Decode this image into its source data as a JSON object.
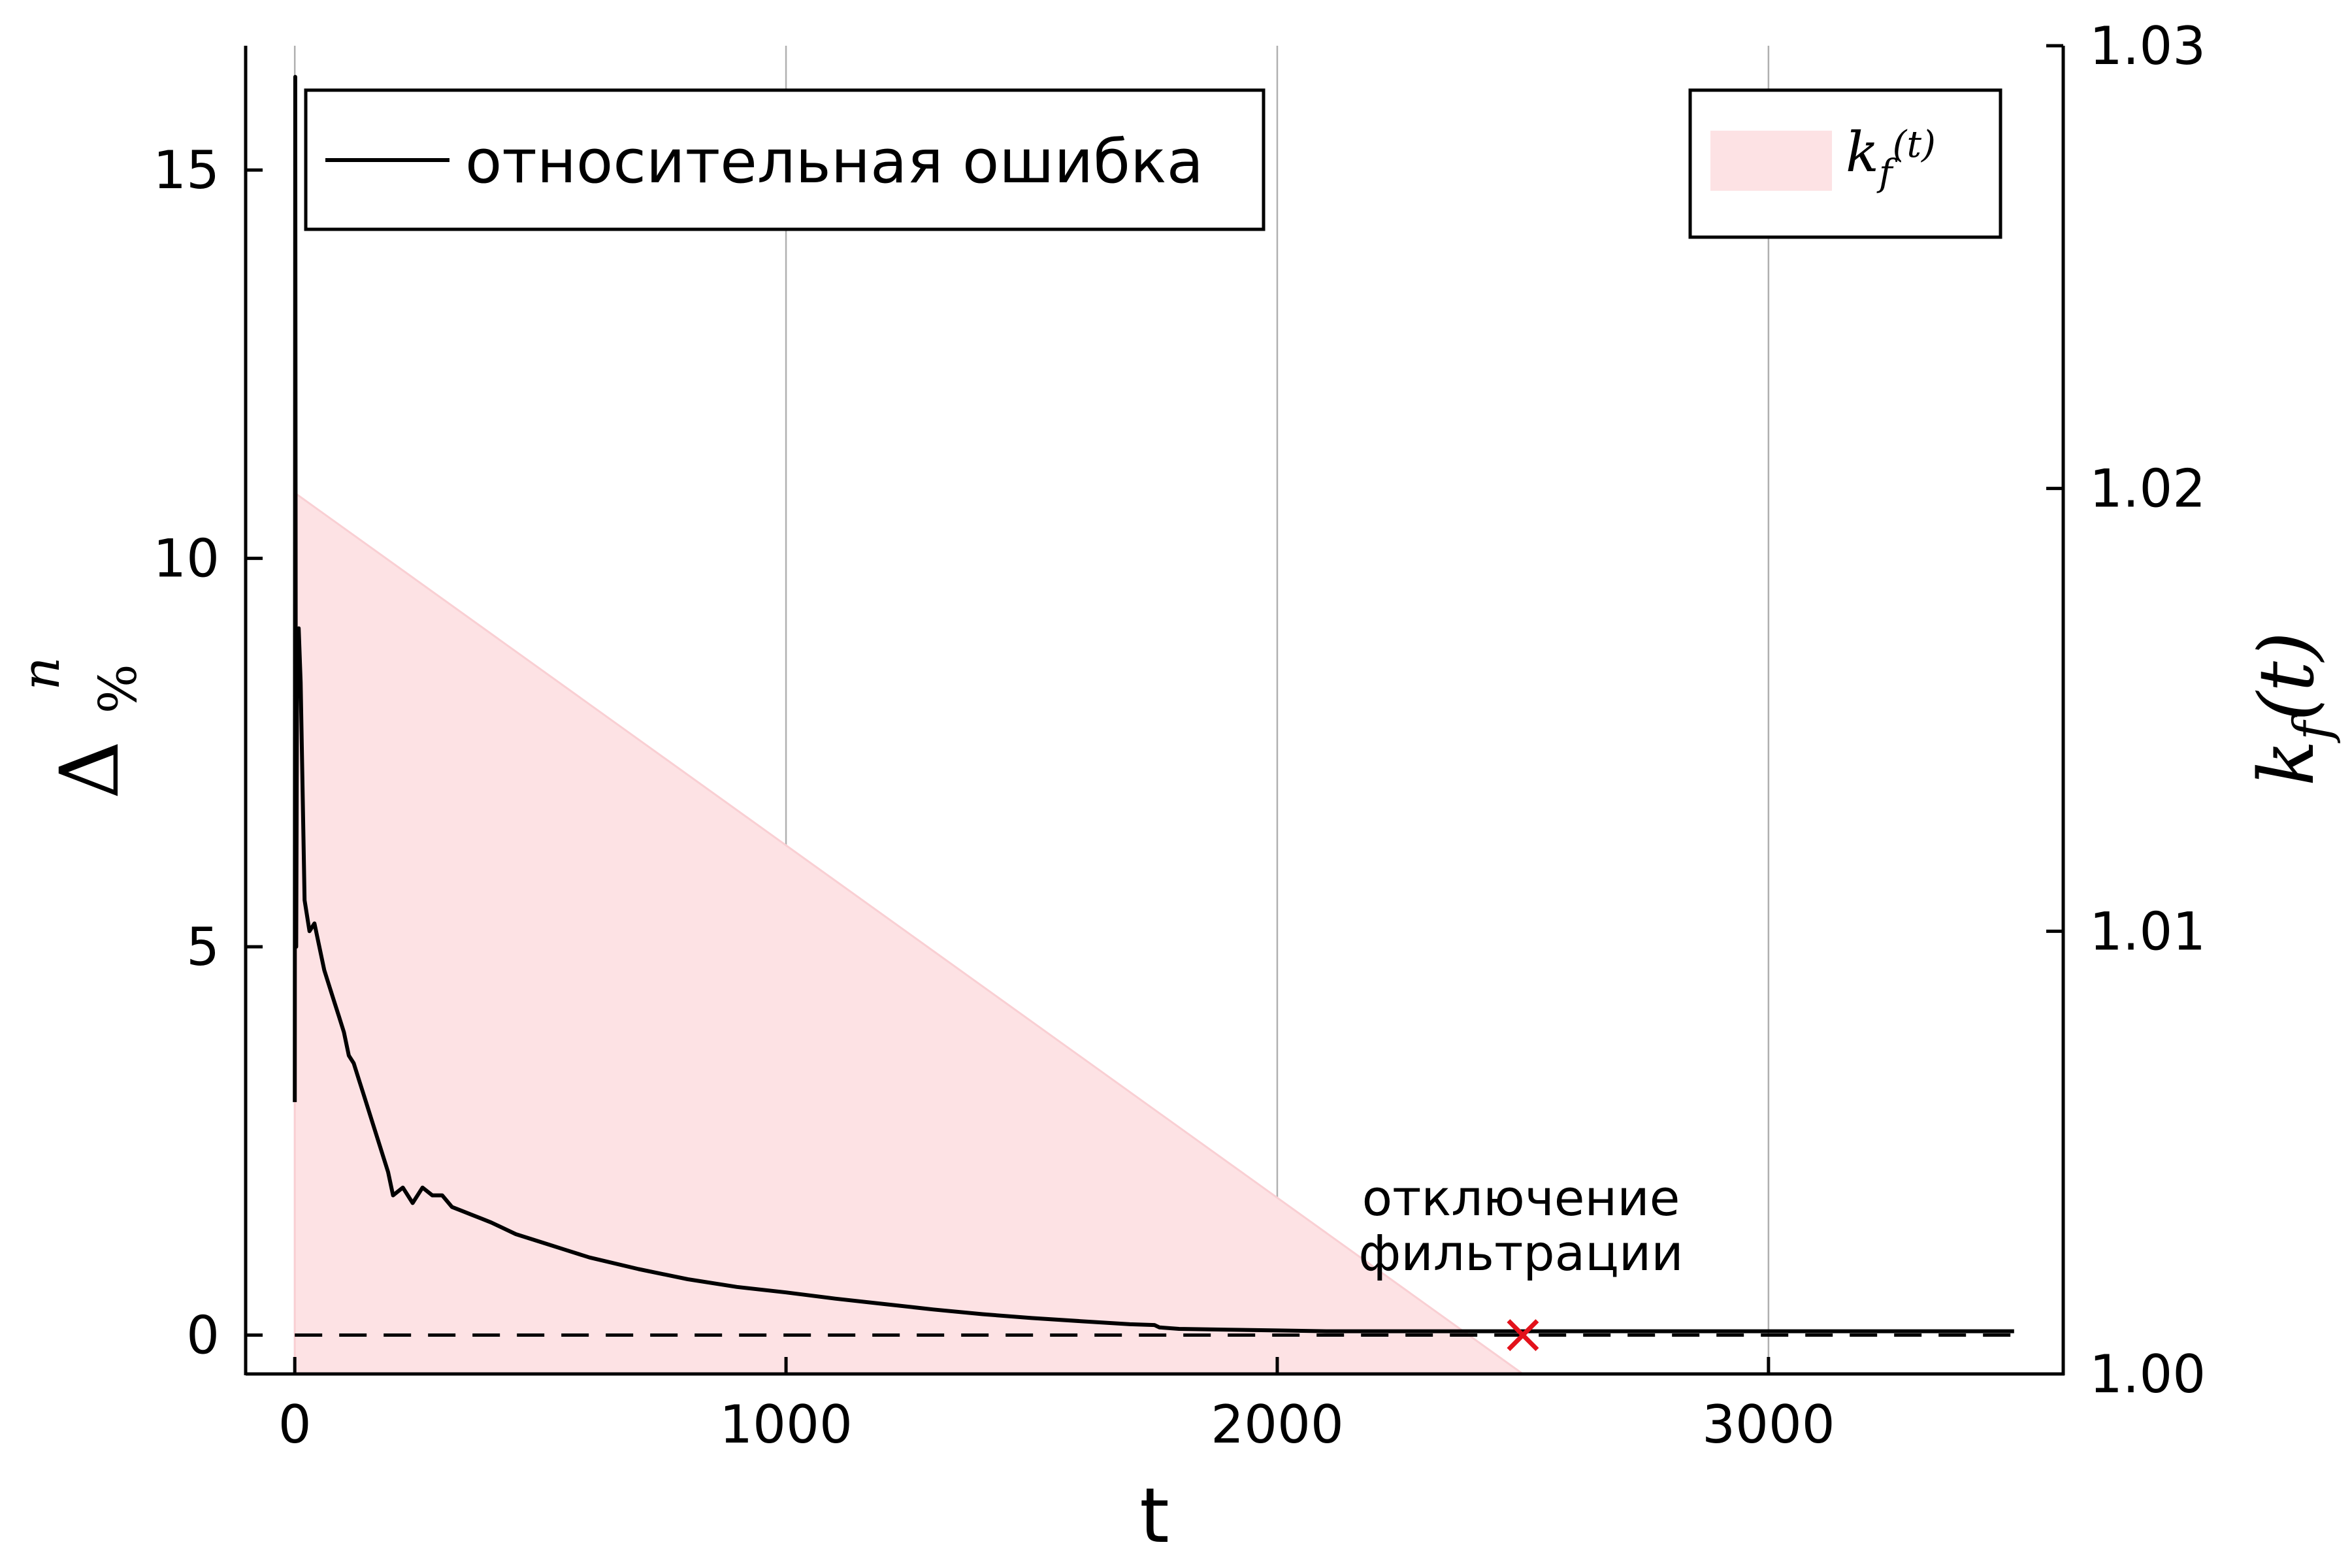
{
  "chart_data": {
    "type": "line",
    "xlabel": "t",
    "ylabel": {
      "base": "Δ",
      "sup": "n",
      "sub": "%"
    },
    "y2label": "k_f(t)",
    "xlim": [
      -100,
      3600
    ],
    "ylim": [
      -0.5,
      16.6
    ],
    "y2lim": [
      1.0,
      1.03
    ],
    "grid": "vertical",
    "x_ticks": [
      0,
      1000,
      2000,
      3000
    ],
    "x_tick_labels": [
      "0",
      "1000",
      "2000",
      "3000"
    ],
    "y_ticks": [
      0,
      5,
      10,
      15
    ],
    "y_tick_labels": [
      "0",
      "5",
      "10",
      "15"
    ],
    "y2_ticks": [
      1.0,
      1.01,
      1.02,
      1.03
    ],
    "y2_tick_labels": [
      "1.00",
      "1.01",
      "1.02",
      "1.03"
    ],
    "series": [
      {
        "name": "относительная ошибка",
        "axis": "left",
        "color": "#000000",
        "x": [
          0,
          1,
          2,
          3,
          5,
          8,
          12,
          20,
          30,
          40,
          50,
          60,
          70,
          80,
          90,
          100,
          110,
          120,
          130,
          140,
          150,
          160,
          170,
          180,
          190,
          200,
          220,
          240,
          260,
          280,
          300,
          320,
          340,
          360,
          380,
          400,
          450,
          500,
          550,
          600,
          700,
          800,
          900,
          1000,
          1100,
          1200,
          1300,
          1400,
          1500,
          1600,
          1700,
          1750,
          1760,
          1800,
          1900,
          2000,
          2100,
          2200,
          2300,
          2400,
          2500,
          2600,
          2800,
          3000,
          3200,
          3500
        ],
        "values": [
          3.0,
          16.2,
          8.0,
          5.0,
          9.0,
          9.1,
          8.4,
          5.6,
          5.2,
          5.3,
          5.0,
          4.7,
          4.5,
          4.3,
          4.1,
          3.9,
          3.6,
          3.5,
          3.3,
          3.1,
          2.9,
          2.7,
          2.5,
          2.3,
          2.1,
          1.8,
          1.9,
          1.7,
          1.9,
          1.8,
          1.8,
          1.65,
          1.6,
          1.55,
          1.5,
          1.45,
          1.3,
          1.2,
          1.1,
          1.0,
          0.85,
          0.72,
          0.62,
          0.55,
          0.47,
          0.4,
          0.33,
          0.27,
          0.22,
          0.18,
          0.14,
          0.13,
          0.1,
          0.08,
          0.07,
          0.06,
          0.05,
          0.05,
          0.05,
          0.05,
          0.05,
          0.05,
          0.05,
          0.05,
          0.05,
          0.05
        ]
      },
      {
        "name": "k_f(t)",
        "axis": "right",
        "type": "area",
        "color": "#fde2e4",
        "x": [
          0,
          2500
        ],
        "values": [
          1.0199,
          1.0
        ]
      }
    ],
    "zero_line": {
      "y": 0,
      "style": "dashed"
    },
    "marker": {
      "x": 2500,
      "y": 0,
      "symbol": "x",
      "color": "#e3121b"
    },
    "annotation": {
      "x": 2500,
      "y": 1.4,
      "lines": [
        "отключение",
        "фильтрации"
      ]
    },
    "legend_left": {
      "placement": "top-left",
      "label": "относительная ошибка"
    },
    "legend_right": {
      "placement": "top-right",
      "label": "k_f(t)"
    }
  }
}
